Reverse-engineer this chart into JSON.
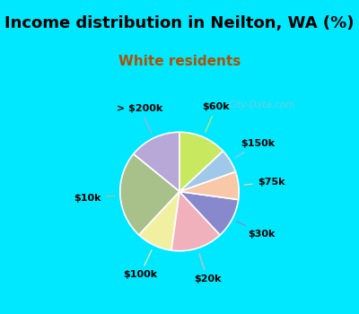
{
  "title": "Income distribution in Neilton, WA (%)",
  "subtitle": "White residents",
  "labels": [
    "> $200k",
    "$10k",
    "$100k",
    "$20k",
    "$30k",
    "$75k",
    "$150k",
    "$60k"
  ],
  "values": [
    13.0,
    22.0,
    9.0,
    13.0,
    10.0,
    7.0,
    6.0,
    12.0
  ],
  "colors": [
    "#b8a8d8",
    "#a8c08a",
    "#f0f0a0",
    "#f0b0bc",
    "#8888cc",
    "#f8c8a8",
    "#a0c8e8",
    "#c8e860"
  ],
  "background_color": "#00e8ff",
  "chart_bg": "#d8eee0",
  "title_fontsize": 13,
  "subtitle_fontsize": 11,
  "subtitle_color": "#b05000",
  "label_fontsize": 8,
  "startangle": 90,
  "watermark": "City-Data.com",
  "line_colors": [
    "#b8a8d8",
    "#a8c08a",
    "#f0f0a0",
    "#f0b0bc",
    "#8888cc",
    "#f8c8a8",
    "#a0c8e8",
    "#c8e860"
  ]
}
